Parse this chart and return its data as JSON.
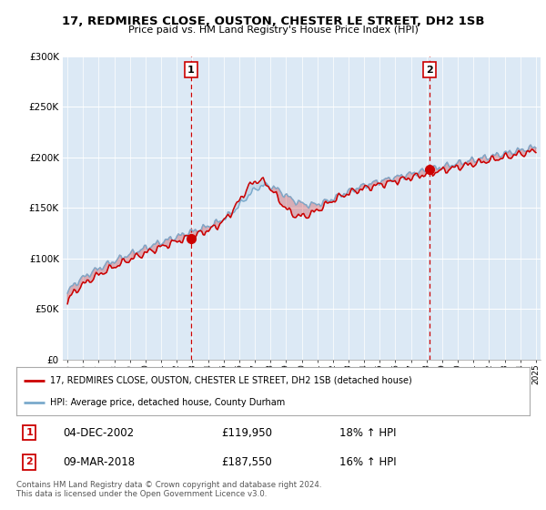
{
  "title": "17, REDMIRES CLOSE, OUSTON, CHESTER LE STREET, DH2 1SB",
  "subtitle": "Price paid vs. HM Land Registry's House Price Index (HPI)",
  "legend_line1": "17, REDMIRES CLOSE, OUSTON, CHESTER LE STREET, DH2 1SB (detached house)",
  "legend_line2": "HPI: Average price, detached house, County Durham",
  "purchase1_date": "04-DEC-2002",
  "purchase1_price": 119950,
  "purchase1_hpi": "18% ↑ HPI",
  "purchase2_date": "09-MAR-2018",
  "purchase2_price": 187550,
  "purchase2_hpi": "16% ↑ HPI",
  "footer": "Contains HM Land Registry data © Crown copyright and database right 2024.\nThis data is licensed under the Open Government Licence v3.0.",
  "ylim": [
    0,
    300000
  ],
  "yticks": [
    0,
    50000,
    100000,
    150000,
    200000,
    250000,
    300000
  ],
  "bg_color": "#dce9f5",
  "line_color_red": "#cc0000",
  "line_color_blue": "#7aaacc",
  "vline_color": "#cc0000",
  "purchase1_year": 2002.92,
  "purchase2_year": 2018.19
}
